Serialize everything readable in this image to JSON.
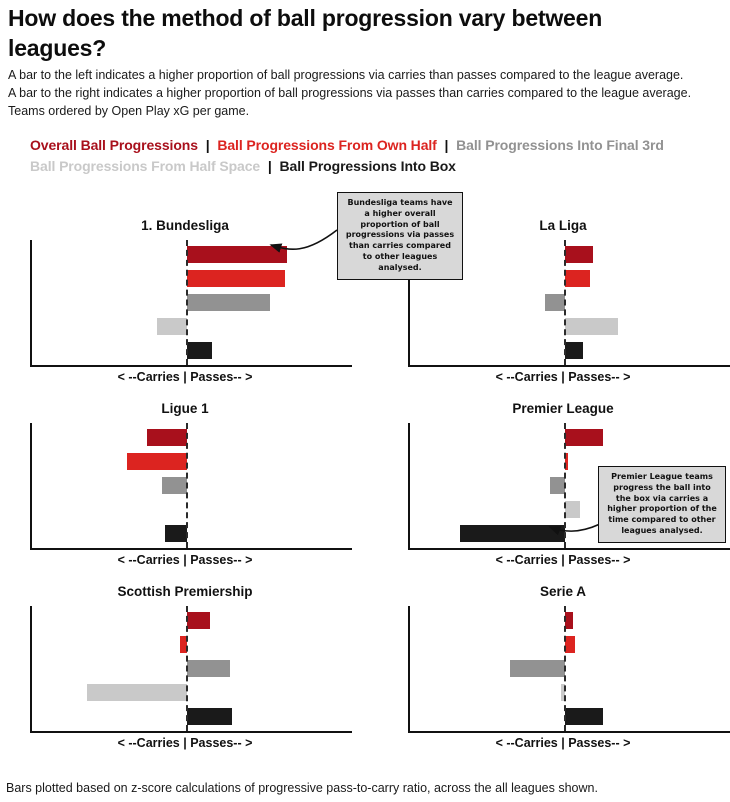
{
  "page": {
    "title_line1": "How does the method of ball progression vary between",
    "title_line2": "leagues?",
    "subtitle_lines": [
      "A bar to the left indicates a higher proportion of ball progressions via carries than passes compared to the league average.",
      "A bar to the right indicates a higher proportion of ball progressions via passes than carries compared to the league average.",
      "Teams ordered by Open Play xG per game."
    ],
    "footnote": "Bars plotted based on z-score calculations of progressive pass-to-carry ratio, across the all leagues shown."
  },
  "legend": {
    "separator": "|"
  },
  "annotations": {
    "bundesliga": "Bundesliga teams have a higher overall proportion of ball progressions via passes than carries compared to other leagues analysed.",
    "premier_league": "Premier League teams progress the ball into the box via carries a higher proportion of the time compared to other leagues analysed."
  },
  "chart_data": {
    "type": "bar",
    "orientation": "horizontal",
    "x_axis_meaning": "z-score of progressive pass-to-carry ratio vs league average (left = more carries, right = more passes)",
    "xlim": [
      -3.1,
      3.1
    ],
    "grid": false,
    "axis_label": "< --Carries | Passes-- >",
    "categories": [
      "Overall Ball Progressions",
      "Ball Progressions From Own Half",
      "Ball Progressions Into Final 3rd",
      "Ball Progressions From Half Space",
      "Ball Progressions Into Box"
    ],
    "colors": [
      "#a8101c",
      "#dc2420",
      "#929292",
      "#c9c9c9",
      "#1a1a1a"
    ],
    "panels": [
      {
        "title": "1. Bundesliga",
        "values": [
          2.0,
          1.95,
          1.65,
          -0.6,
          0.5
        ]
      },
      {
        "title": "La Liga",
        "values": [
          0.55,
          0.5,
          -0.4,
          1.05,
          0.35
        ]
      },
      {
        "title": "Ligue 1",
        "values": [
          -0.8,
          -1.2,
          -0.5,
          0,
          -0.45
        ]
      },
      {
        "title": "Premier League",
        "values": [
          0.75,
          0.05,
          -0.3,
          0.3,
          -2.1
        ]
      },
      {
        "title": "Scottish Premiership",
        "values": [
          0.45,
          -0.15,
          0.85,
          -2.0,
          0.9
        ]
      },
      {
        "title": "Serie A",
        "values": [
          0.15,
          0.2,
          -1.1,
          -0.08,
          0.75
        ]
      }
    ]
  }
}
